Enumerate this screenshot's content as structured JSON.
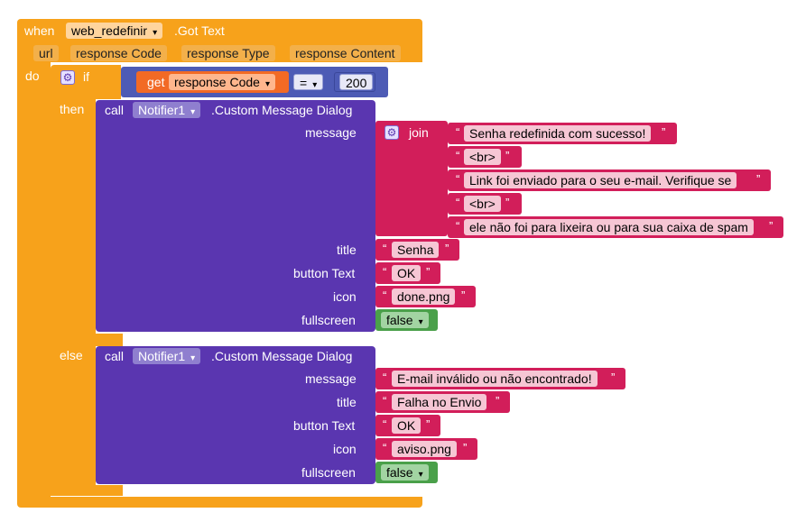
{
  "event": {
    "when": "when",
    "component": "web_redefinir",
    "event_name": ".Got Text",
    "params": [
      "url",
      "response Code",
      "response Type",
      "response Content"
    ],
    "do": "do"
  },
  "if_block": {
    "if": "if",
    "then": "then",
    "else": "else",
    "get": "get",
    "var": "response Code",
    "op": "=",
    "value": "200"
  },
  "success_call": {
    "call": "call",
    "component": "Notifier1",
    "method": ".Custom Message Dialog",
    "labels": {
      "message": "message",
      "title": "title",
      "button_text": "button Text",
      "icon": "icon",
      "fullscreen": "fullscreen"
    },
    "join": "join",
    "message_parts": [
      "Senha redefinida com sucesso!",
      "<br>",
      "Link foi enviado para o seu e-mail. Verifique se ",
      "<br>",
      "ele não foi para lixeira ou para sua caixa de spam"
    ],
    "title": "Senha",
    "button_text": "OK",
    "icon": "done.png",
    "fullscreen": "false"
  },
  "failure_call": {
    "call": "call",
    "component": "Notifier1",
    "method": ".Custom Message Dialog",
    "labels": {
      "message": "message",
      "title": "title",
      "button_text": "button Text",
      "icon": "icon",
      "fullscreen": "fullscreen"
    },
    "message": "E-mail inválido ou não encontrado!",
    "title": "Falha no Envio",
    "button_text": "OK",
    "icon": "aviso.png",
    "fullscreen": "false"
  },
  "quote": "“",
  "quote_close": "”",
  "colors": {
    "event": "#f7a21b",
    "logic": "#4d5bb5",
    "notifier": "#5a36b0",
    "text": "#d21e5a",
    "variable": "#f26a25",
    "boolean": "#4aa04a"
  }
}
